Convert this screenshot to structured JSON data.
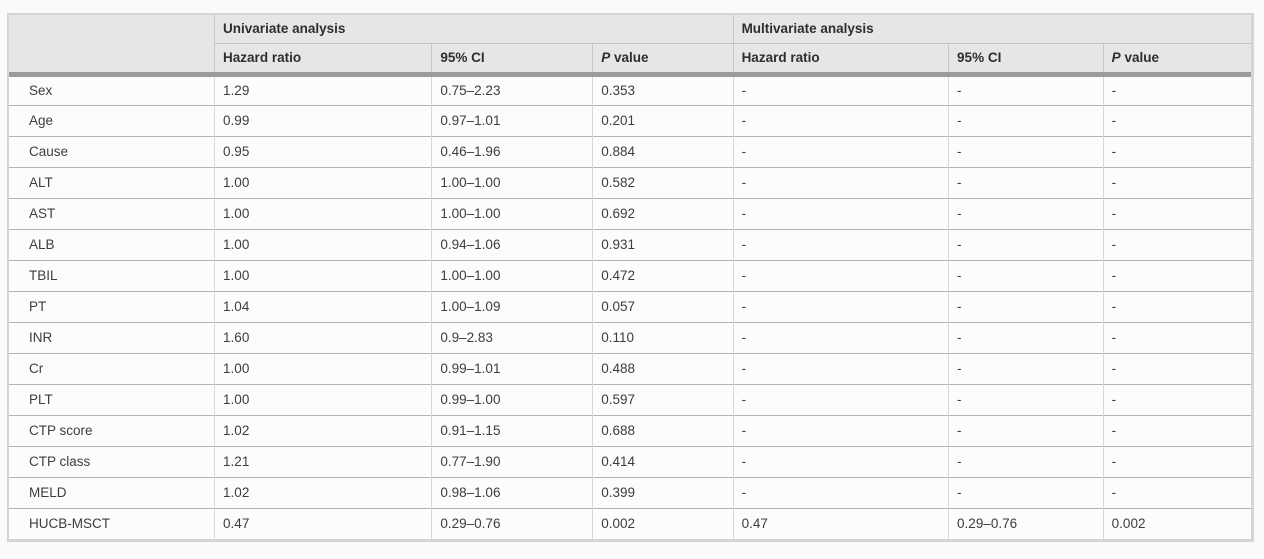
{
  "page": {
    "background_color": "#fafafa",
    "table_background": "#fcfcfc",
    "header_background": "#e6e6e6",
    "thick_rule_color": "#9b9b9b",
    "row_border_color": "#b3b3b3",
    "column_border_color": "#d8d8d8",
    "text_color": "#3d3d3d"
  },
  "table": {
    "group_headers": {
      "univariate": "Univariate analysis",
      "multivariate": "Multivariate analysis"
    },
    "column_headers": {
      "hazard_ratio": "Hazard ratio",
      "ci": "95% CI",
      "p_italic": "P",
      "p_rest": "value"
    },
    "rows": [
      {
        "label": "Sex",
        "uni": [
          "1.29",
          "0.75–2.23",
          "0.353"
        ],
        "multi": [
          "-",
          "-",
          "-"
        ]
      },
      {
        "label": "Age",
        "uni": [
          "0.99",
          "0.97–1.01",
          "0.201"
        ],
        "multi": [
          "-",
          "-",
          "-"
        ]
      },
      {
        "label": "Cause",
        "uni": [
          "0.95",
          "0.46–1.96",
          "0.884"
        ],
        "multi": [
          "-",
          "-",
          "-"
        ]
      },
      {
        "label": "ALT",
        "uni": [
          "1.00",
          "1.00–1.00",
          "0.582"
        ],
        "multi": [
          "-",
          "-",
          "-"
        ]
      },
      {
        "label": "AST",
        "uni": [
          "1.00",
          "1.00–1.00",
          "0.692"
        ],
        "multi": [
          "-",
          "-",
          "-"
        ]
      },
      {
        "label": "ALB",
        "uni": [
          "1.00",
          "0.94–1.06",
          "0.931"
        ],
        "multi": [
          "-",
          "-",
          "-"
        ]
      },
      {
        "label": "TBIL",
        "uni": [
          "1.00",
          "1.00–1.00",
          "0.472"
        ],
        "multi": [
          "-",
          "-",
          "-"
        ]
      },
      {
        "label": "PT",
        "uni": [
          "1.04",
          "1.00–1.09",
          "0.057"
        ],
        "multi": [
          "-",
          "-",
          "-"
        ]
      },
      {
        "label": "INR",
        "uni": [
          "1.60",
          "0.9–2.83",
          "0.110"
        ],
        "multi": [
          "-",
          "-",
          "-"
        ]
      },
      {
        "label": "Cr",
        "uni": [
          "1.00",
          "0.99–1.01",
          "0.488"
        ],
        "multi": [
          "-",
          "-",
          "-"
        ]
      },
      {
        "label": "PLT",
        "uni": [
          "1.00",
          "0.99–1.00",
          "0.597"
        ],
        "multi": [
          "-",
          "-",
          "-"
        ]
      },
      {
        "label": "CTP score",
        "uni": [
          "1.02",
          "0.91–1.15",
          "0.688"
        ],
        "multi": [
          "-",
          "-",
          "-"
        ]
      },
      {
        "label": "CTP class",
        "uni": [
          "1.21",
          "0.77–1.90",
          "0.414"
        ],
        "multi": [
          "-",
          "-",
          "-"
        ]
      },
      {
        "label": "MELD",
        "uni": [
          "1.02",
          "0.98–1.06",
          "0.399"
        ],
        "multi": [
          "-",
          "-",
          "-"
        ]
      },
      {
        "label": "HUCB-MSCT",
        "uni": [
          "0.47",
          "0.29–0.76",
          "0.002"
        ],
        "multi": [
          "0.47",
          "0.29–0.76",
          "0.002"
        ]
      }
    ]
  }
}
